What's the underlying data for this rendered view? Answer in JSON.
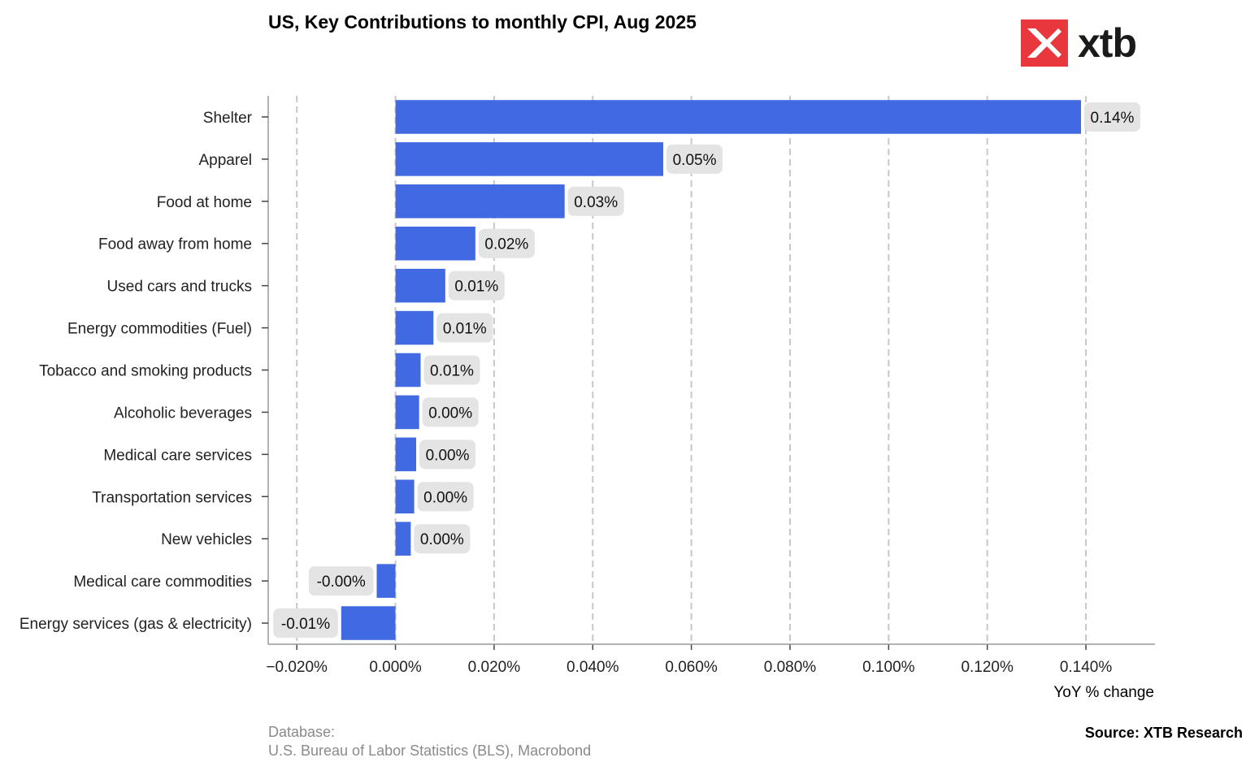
{
  "title": "US, Key Contributions to monthly CPI, Aug 2025",
  "logo": {
    "text": "xtb",
    "color": "#e8383d"
  },
  "chart_data": {
    "type": "bar",
    "orientation": "horizontal",
    "categories": [
      "Shelter",
      "Apparel",
      "Food at home",
      "Food away from home",
      "Used cars and trucks",
      "Energy commodities (Fuel)",
      "Tobacco and smoking products",
      "Alcoholic beverages",
      "Medical care services",
      "Transportation services",
      "New vehicles",
      "Medical care commodities",
      "Energy services (gas & electricity)"
    ],
    "values": [
      0.139,
      0.0543,
      0.0343,
      0.0162,
      0.0101,
      0.0077,
      0.0051,
      0.0048,
      0.0042,
      0.0038,
      0.0031,
      -0.0038,
      -0.011
    ],
    "data_labels": [
      "0.14%",
      "0.05%",
      "0.03%",
      "0.02%",
      "0.01%",
      "0.01%",
      "0.01%",
      "0.00%",
      "0.00%",
      "0.00%",
      "0.00%",
      "-0.00%",
      "-0.01%"
    ],
    "xlim": [
      -0.0258,
      0.154
    ],
    "xticks": [
      -0.02,
      0.0,
      0.02,
      0.04,
      0.06,
      0.08,
      0.1,
      0.12,
      0.14
    ],
    "xtick_labels": [
      "−0.020%",
      "0.000%",
      "0.020%",
      "0.040%",
      "0.060%",
      "0.080%",
      "0.100%",
      "0.120%",
      "0.140%"
    ],
    "xlabel": "YoY % change",
    "grid": "vertical dashed",
    "bar_color": "#4169e1",
    "label_bg_color": "#e4e4e4"
  },
  "footer": {
    "database_label": "Database:",
    "database_sources": "U.S. Bureau of Labor Statistics (BLS), Macrobond",
    "source": "Source: XTB Research"
  }
}
